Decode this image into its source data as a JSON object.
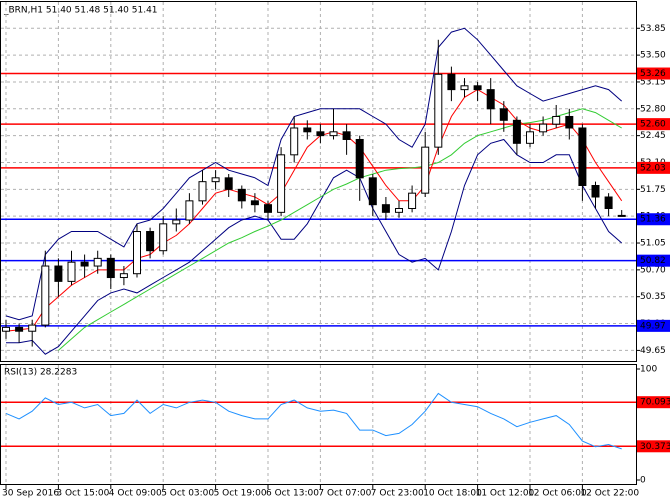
{
  "chart_data": [
    {
      "type": "candlestick",
      "title": "_BRN,H1 51.40 51.48 51.40 51.41",
      "categories": [
        "30 Sep 2016",
        null,
        null,
        null,
        "3 Oct 15:00",
        null,
        null,
        null,
        "4 Oct 09:00",
        null,
        null,
        null,
        "5 Oct 03:00",
        null,
        null,
        null,
        "5 Oct 19:00",
        null,
        null,
        null,
        "6 Oct 13:00",
        null,
        null,
        null,
        "7 Oct 07:00",
        null,
        null,
        null,
        "7 Oct 23:00",
        null,
        null,
        null,
        "10 Oct 18:00",
        null,
        null,
        null,
        "11 Oct 12:00",
        null,
        null,
        null,
        "12 Oct 06:00",
        null,
        null,
        null,
        "12 Oct 22:00",
        null,
        null,
        null
      ],
      "open": [
        49.9,
        49.95,
        49.9,
        49.98,
        50.75,
        50.55,
        50.8,
        50.75,
        50.85,
        50.6,
        50.65,
        51.2,
        50.95,
        51.3,
        51.35,
        51.6,
        51.85,
        51.9,
        51.75,
        51.6,
        51.55,
        51.45,
        52.2,
        52.55,
        52.5,
        52.45,
        52.5,
        52.4,
        51.9,
        51.55,
        51.45,
        51.5,
        51.7,
        52.3,
        53.25,
        53.05,
        53.1,
        53.05,
        52.8,
        52.65,
        52.35,
        52.5,
        52.6,
        52.7,
        52.55,
        51.8,
        51.65,
        51.4
      ],
      "high": [
        50.05,
        50.0,
        50.05,
        50.95,
        50.85,
        50.95,
        50.9,
        50.95,
        50.9,
        50.75,
        51.3,
        51.25,
        51.4,
        51.5,
        51.7,
        52.0,
        52.0,
        51.95,
        51.8,
        51.7,
        51.6,
        52.3,
        52.7,
        52.65,
        52.6,
        52.8,
        52.6,
        52.45,
        51.95,
        51.65,
        51.6,
        51.8,
        52.5,
        53.7,
        53.35,
        53.2,
        53.15,
        53.2,
        52.9,
        52.7,
        52.6,
        52.7,
        52.85,
        52.8,
        52.6,
        51.85,
        51.7,
        51.48
      ],
      "low": [
        49.8,
        49.75,
        49.7,
        49.95,
        50.35,
        50.5,
        50.6,
        50.65,
        50.45,
        50.5,
        50.6,
        50.85,
        50.9,
        51.2,
        51.3,
        51.55,
        51.75,
        51.65,
        51.5,
        51.45,
        51.35,
        51.4,
        52.1,
        52.4,
        52.35,
        52.4,
        52.2,
        51.6,
        51.4,
        51.35,
        51.38,
        51.45,
        51.65,
        52.2,
        52.9,
        52.95,
        52.9,
        52.6,
        52.5,
        52.2,
        52.3,
        52.45,
        52.55,
        52.4,
        51.6,
        51.5,
        51.4,
        51.4
      ],
      "close": [
        49.95,
        49.9,
        49.98,
        50.75,
        50.55,
        50.8,
        50.75,
        50.85,
        50.6,
        50.65,
        51.2,
        50.95,
        51.3,
        51.35,
        51.6,
        51.85,
        51.9,
        51.75,
        51.6,
        51.55,
        51.45,
        52.2,
        52.55,
        52.5,
        52.45,
        52.5,
        52.4,
        51.9,
        51.55,
        51.45,
        51.5,
        51.7,
        52.3,
        53.25,
        53.05,
        53.1,
        53.05,
        52.8,
        52.65,
        52.35,
        52.5,
        52.6,
        52.7,
        52.55,
        51.8,
        51.65,
        51.5,
        51.41
      ],
      "series": [
        {
          "color": "#000080",
          "values": [
            50.1,
            50.05,
            50.1,
            50.9,
            51.1,
            51.2,
            51.2,
            51.2,
            51.1,
            51.0,
            51.3,
            51.35,
            51.5,
            51.7,
            51.9,
            52.0,
            52.1,
            52.0,
            51.95,
            51.9,
            51.8,
            52.4,
            52.7,
            52.75,
            52.8,
            52.8,
            52.8,
            52.8,
            52.7,
            52.6,
            52.4,
            52.3,
            52.6,
            53.6,
            53.8,
            53.85,
            53.7,
            53.5,
            53.3,
            53.1,
            53.0,
            52.9,
            52.95,
            53.0,
            53.05,
            53.1,
            53.05,
            52.9
          ]
        },
        {
          "color": "#000080",
          "values": [
            49.75,
            49.75,
            49.78,
            49.6,
            49.7,
            49.9,
            50.1,
            50.3,
            50.4,
            50.45,
            50.4,
            50.5,
            50.6,
            50.7,
            50.8,
            50.95,
            51.1,
            51.25,
            51.35,
            51.4,
            51.35,
            51.1,
            51.1,
            51.3,
            51.6,
            51.9,
            52.0,
            51.9,
            51.5,
            51.2,
            50.9,
            50.8,
            50.85,
            50.7,
            51.2,
            51.8,
            52.2,
            52.35,
            52.4,
            52.2,
            52.1,
            52.1,
            52.2,
            52.2,
            51.8,
            51.5,
            51.2,
            51.05
          ]
        },
        {
          "color": "#33cc33",
          "values": [
            null,
            null,
            null,
            null,
            49.65,
            49.8,
            49.95,
            50.05,
            50.15,
            50.25,
            50.35,
            50.45,
            50.55,
            50.65,
            50.75,
            50.85,
            50.95,
            51.05,
            51.12,
            51.2,
            51.27,
            51.35,
            51.45,
            51.55,
            51.65,
            51.75,
            51.82,
            51.9,
            51.95,
            52.0,
            52.02,
            52.03,
            52.05,
            52.1,
            52.2,
            52.35,
            52.45,
            52.5,
            52.55,
            52.6,
            52.62,
            52.65,
            52.7,
            52.75,
            52.8,
            52.75,
            52.65,
            52.55
          ]
        },
        {
          "color": "#ff0000",
          "values": [
            49.9,
            49.92,
            49.94,
            50.2,
            50.35,
            50.5,
            50.6,
            50.7,
            50.7,
            50.7,
            50.85,
            50.9,
            51.05,
            51.15,
            51.3,
            51.5,
            51.7,
            51.75,
            51.7,
            51.65,
            51.55,
            51.7,
            52.0,
            52.3,
            52.45,
            52.5,
            52.45,
            52.3,
            52.05,
            51.8,
            51.6,
            51.6,
            51.8,
            52.3,
            52.7,
            52.95,
            53.05,
            52.95,
            52.85,
            52.65,
            52.55,
            52.5,
            52.55,
            52.6,
            52.4,
            52.1,
            51.85,
            51.6
          ]
        }
      ],
      "hlines": [
        {
          "value": 53.26,
          "label": "53.26",
          "color": "#ff0000"
        },
        {
          "value": 52.6,
          "label": "52.60",
          "color": "#ff0000"
        },
        {
          "value": 52.03,
          "label": "52.03",
          "color": "#ff0000"
        },
        {
          "value": 51.36,
          "label": "51.36",
          "color": "#0000ff"
        },
        {
          "value": 50.82,
          "label": "50.82",
          "color": "#0000ff"
        },
        {
          "value": 49.97,
          "label": "49.97",
          "color": "#0000ff"
        }
      ],
      "ylim": [
        49.59,
        54.01
      ],
      "yticks": [
        53.85,
        {
          "value": 53.5,
          "label": "53.50"
        },
        53.15,
        {
          "value": 52.8,
          "label": "52.80"
        },
        52.45,
        {
          "value": 52.1,
          "label": "52.10"
        },
        51.75,
        {
          "value": 51.4,
          "label": "51.40"
        },
        51.05,
        {
          "value": 50.7,
          "label": "50.70"
        },
        50.35,
        {
          "value": 50.0,
          "label": "50.00"
        },
        49.65
      ],
      "grid": true
    },
    {
      "type": "line",
      "title": "RSI(13) 28.2283",
      "series": [
        {
          "color": "#1e90ff",
          "values": [
            60,
            55,
            62,
            74,
            68,
            70,
            65,
            68,
            58,
            60,
            72,
            60,
            68,
            65,
            70,
            72,
            70,
            62,
            58,
            55,
            55,
            68,
            72,
            65,
            62,
            63,
            60,
            45,
            45,
            40,
            42,
            50,
            62,
            78,
            70,
            68,
            66,
            60,
            55,
            48,
            52,
            55,
            58,
            50,
            35,
            30,
            32,
            28
          ]
        }
      ],
      "hlines": [
        {
          "value": 70.0935,
          "label": "70.0935",
          "color": "#ff0000"
        },
        {
          "value": 30.3738,
          "label": "30.3738",
          "color": "#ff0000"
        }
      ],
      "ylim": [
        0,
        100
      ],
      "yticks": [
        100,
        0
      ],
      "grid": true
    }
  ]
}
